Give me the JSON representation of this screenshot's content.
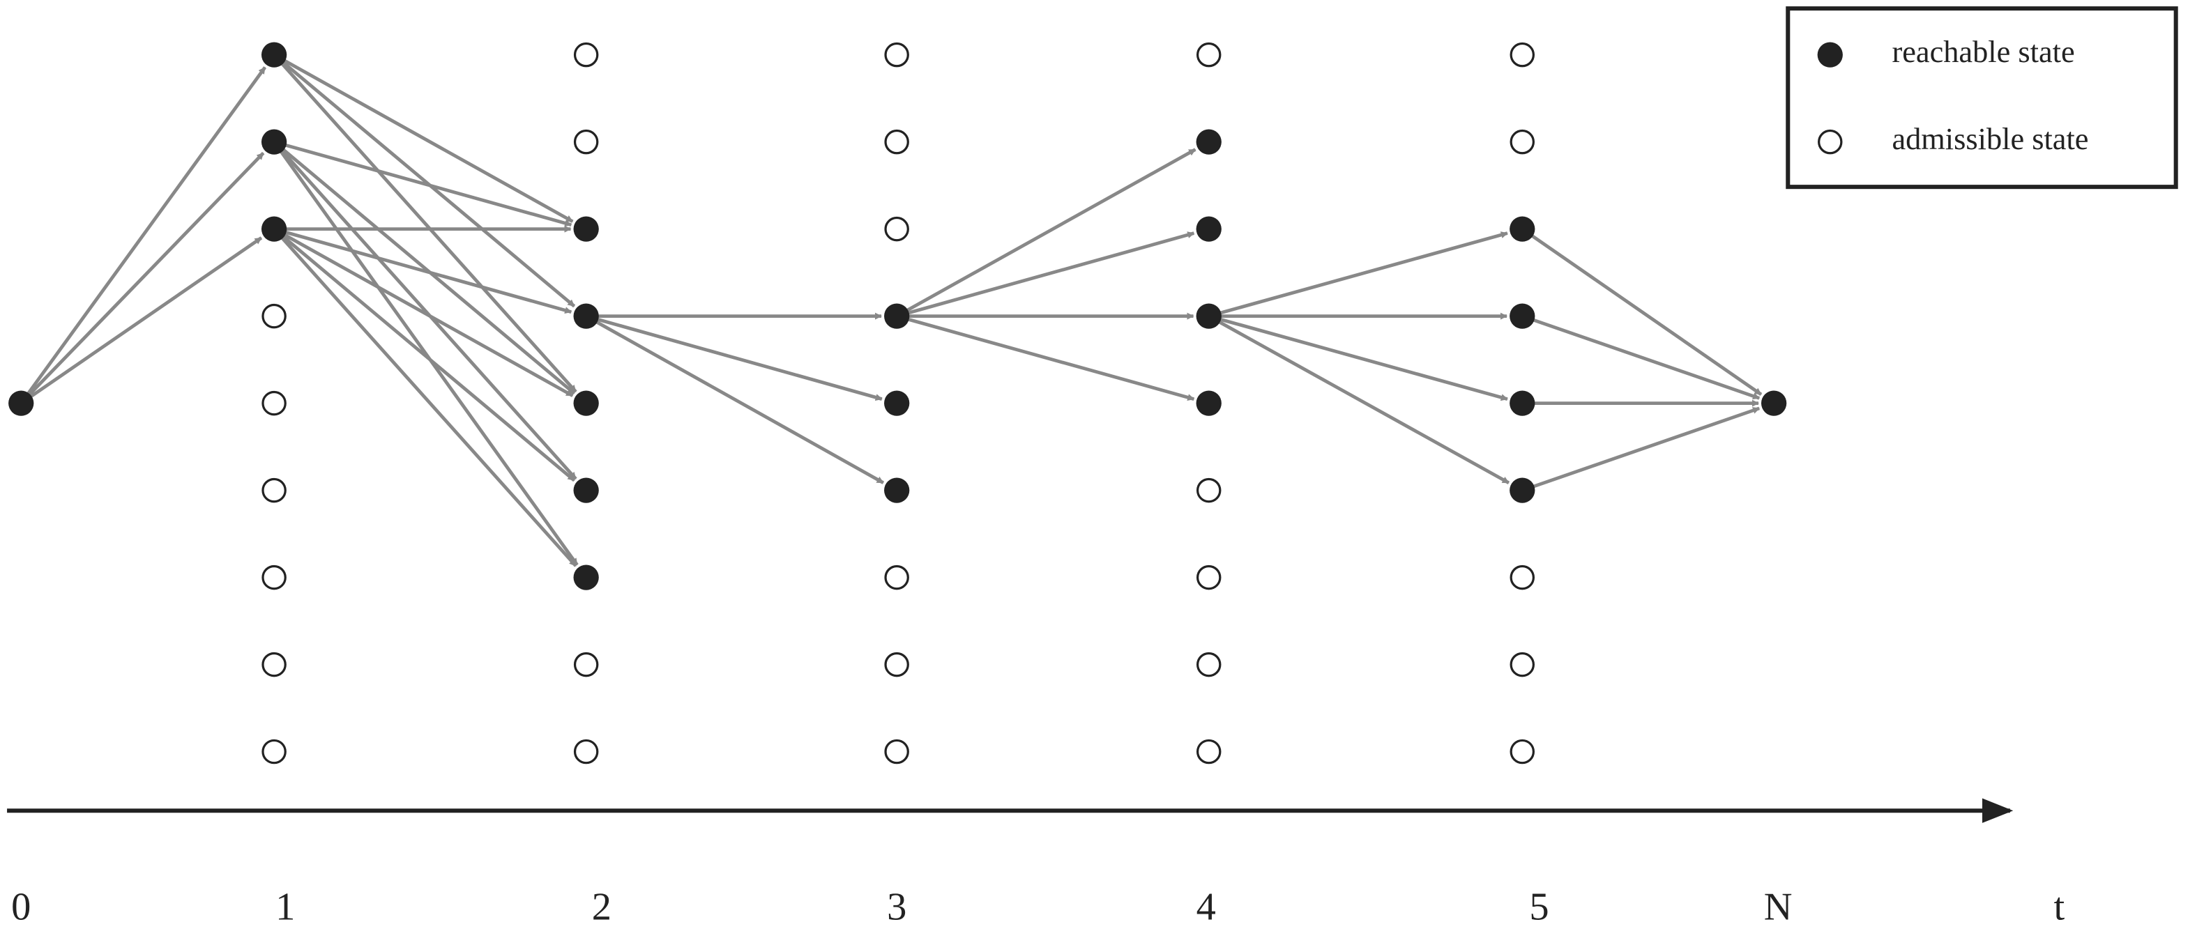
{
  "axis": {
    "labels": [
      "0",
      "1",
      "2",
      "3",
      "4",
      "5",
      "N",
      "t"
    ]
  },
  "legend": {
    "entries": [
      "reachable state",
      "admissible state"
    ]
  }
}
